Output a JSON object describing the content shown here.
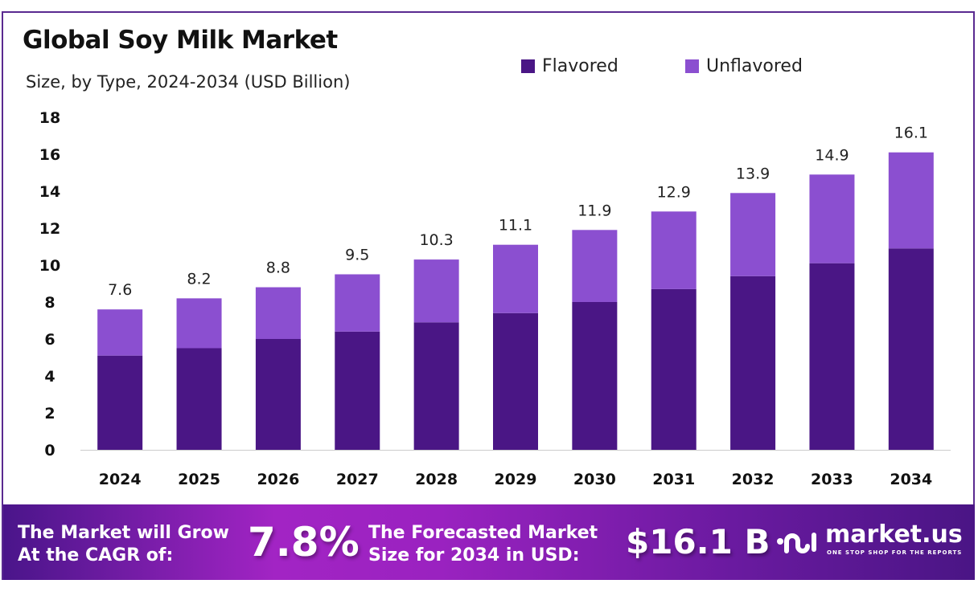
{
  "chart_data": {
    "type": "bar",
    "stacked": true,
    "title": "Global Soy Milk Market",
    "subtitle": "Size, by Type, 2024-2034 (USD Billion)",
    "categories": [
      "2024",
      "2025",
      "2026",
      "2027",
      "2028",
      "2029",
      "2030",
      "2031",
      "2032",
      "2033",
      "2034"
    ],
    "series": [
      {
        "name": "Flavored",
        "color": "#4a1685",
        "values": [
          5.1,
          5.5,
          6.0,
          6.4,
          6.9,
          7.4,
          8.0,
          8.7,
          9.4,
          10.1,
          10.9
        ]
      },
      {
        "name": "Unflavored",
        "color": "#8b4fd0",
        "values": [
          2.5,
          2.7,
          2.8,
          3.1,
          3.4,
          3.7,
          3.9,
          4.2,
          4.5,
          4.8,
          5.2
        ]
      }
    ],
    "totals": [
      "7.6",
      "8.2",
      "8.8",
      "9.5",
      "10.3",
      "11.1",
      "11.9",
      "12.9",
      "13.9",
      "14.9",
      "16.1"
    ],
    "ylim": [
      0,
      18
    ],
    "yticks": [
      "0",
      "2",
      "4",
      "6",
      "8",
      "10",
      "12",
      "14",
      "16",
      "18"
    ],
    "grid": false,
    "legend_position": "top-right"
  },
  "footer": {
    "cagr_text_1": "The Market will Grow",
    "cagr_text_2": "At the CAGR of:",
    "cagr_value": "7.8%",
    "forecast_text_1": "The Forecasted Market",
    "forecast_text_2": "Size for 2034 in USD:",
    "forecast_value": "$16.1 B",
    "brand": "market.us",
    "tagline": "ONE STOP SHOP FOR THE REPORTS"
  }
}
